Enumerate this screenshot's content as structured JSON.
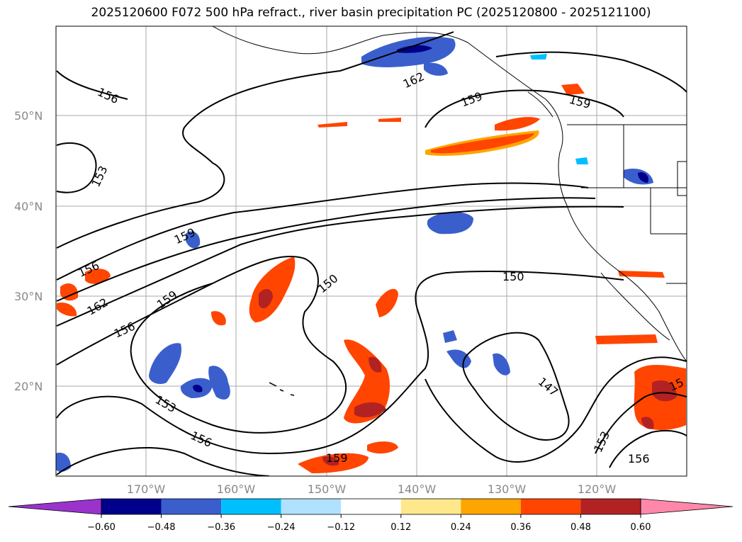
{
  "title": "2025120600 F072 500 hPa refract., river basin precipitation PC (2025120800 - 2025121100)",
  "map": {
    "lat_labels": [
      "50°N",
      "40°N",
      "30°N",
      "20°N"
    ],
    "lon_labels": [
      "170°W",
      "160°W",
      "150°W",
      "140°W",
      "130°W",
      "120°W"
    ],
    "contour_labels": [
      "156",
      "153",
      "162",
      "159",
      "159",
      "156",
      "162",
      "159",
      "156",
      "150",
      "150",
      "159",
      "153",
      "156",
      "147",
      "153",
      "156",
      "159",
      "15"
    ]
  },
  "colorbar": {
    "colors": [
      "#9933cc",
      "#00008b",
      "#3a5fcd",
      "#00bfff",
      "#b0e2ff",
      "#ffffff",
      "#ffe88c",
      "#ffa500",
      "#ff4500",
      "#b22222",
      "#ff88aa"
    ],
    "tick_labels": [
      "−0.60",
      "−0.48",
      "−0.36",
      "−0.24",
      "−0.12",
      "0.12",
      "0.24",
      "0.36",
      "0.48",
      "0.60"
    ]
  }
}
